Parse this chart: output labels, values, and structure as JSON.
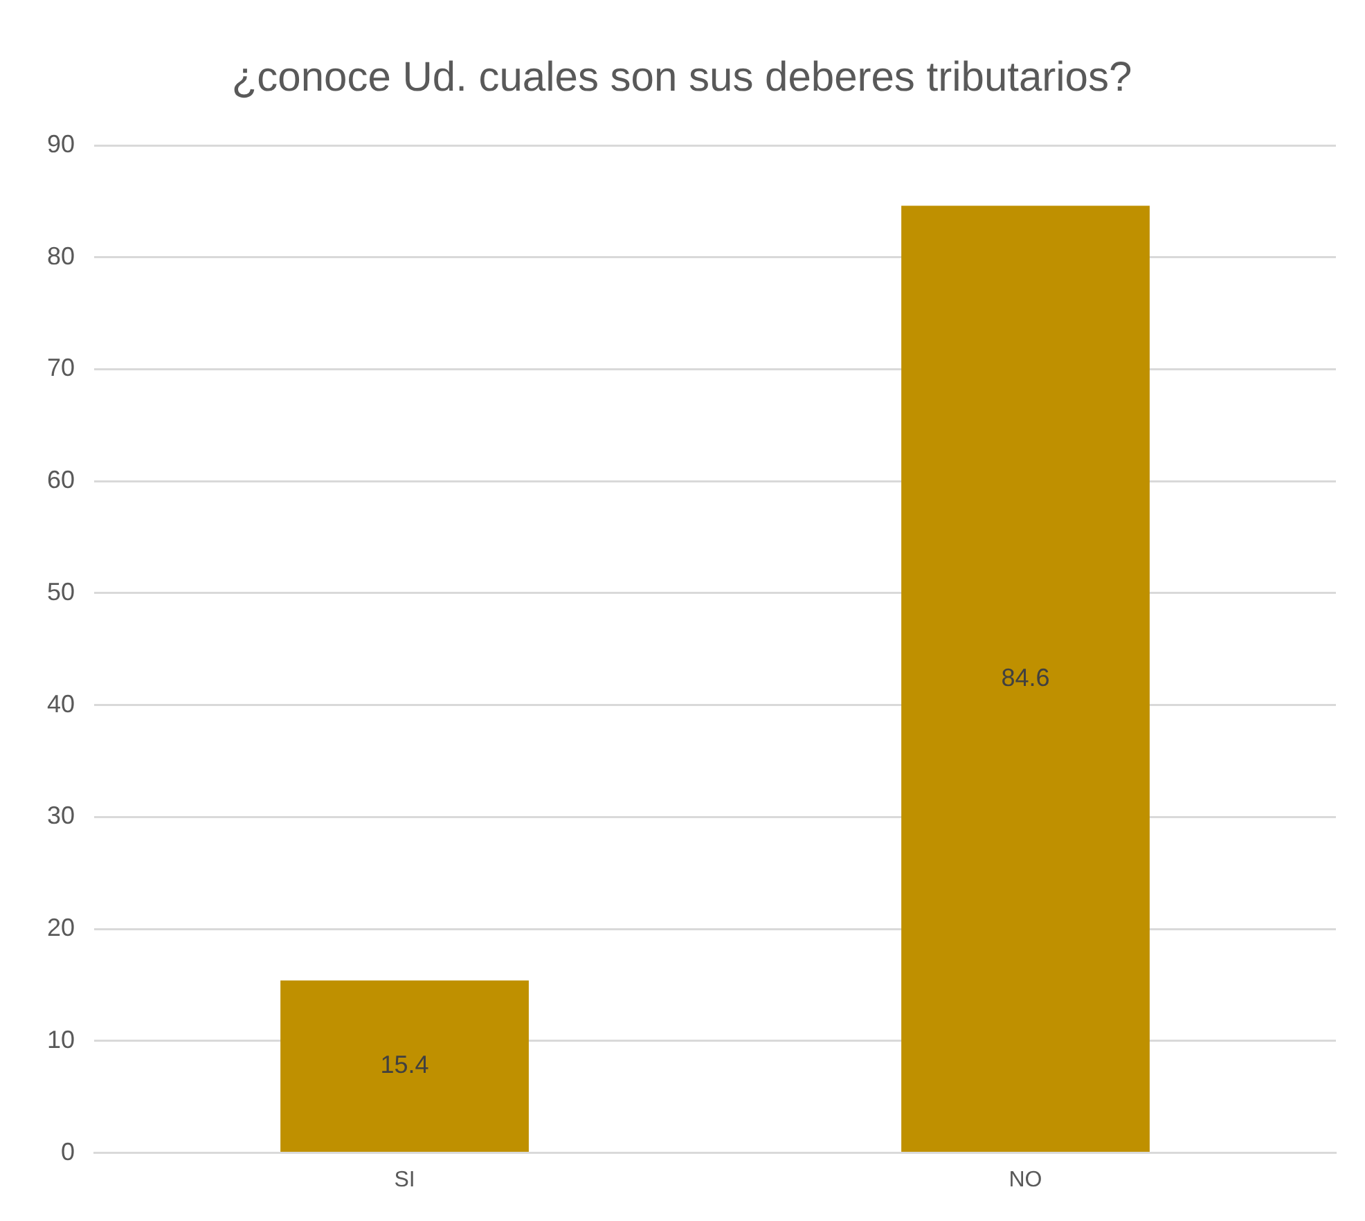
{
  "chart_data": {
    "type": "bar",
    "title": "¿conoce Ud. cuales son sus deberes tributarios?",
    "categories": [
      "SI",
      "NO"
    ],
    "values": [
      15.4,
      84.6
    ],
    "color": "#bf9000",
    "ylim": [
      0,
      90
    ],
    "yticks": [
      0,
      10,
      20,
      30,
      40,
      50,
      60,
      70,
      80,
      90
    ],
    "grid": "y",
    "legend": false,
    "data_labels": true
  }
}
